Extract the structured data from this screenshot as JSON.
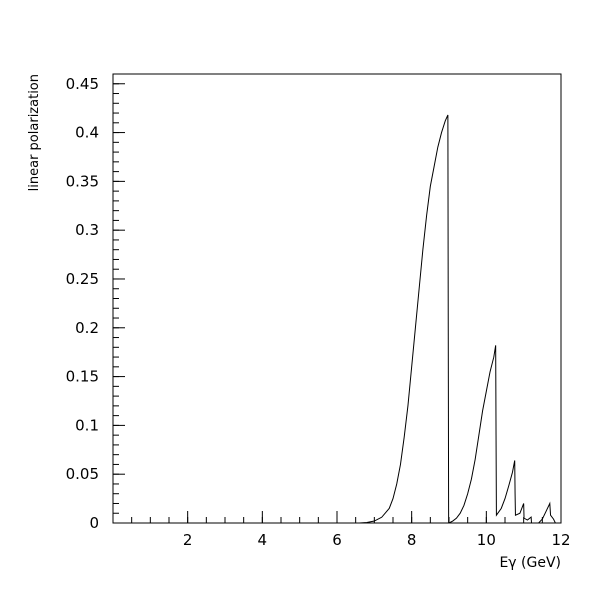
{
  "chart_data": {
    "type": "line",
    "title": "",
    "xlabel": "Eγ (GeV)",
    "ylabel": "linear polarization",
    "xlim": [
      0,
      12
    ],
    "ylim": [
      0,
      0.46
    ],
    "x_ticks_major": [
      2,
      4,
      6,
      8,
      10,
      12
    ],
    "x_ticks_minor_step": 0.5,
    "y_ticks_major": [
      0,
      0.05,
      0.1,
      0.15,
      0.2,
      0.25,
      0.3,
      0.35,
      0.4,
      0.45
    ],
    "y_tick_labels": [
      "0",
      "0.05",
      "0.1",
      "0.15",
      "0.2",
      "0.25",
      "0.3",
      "0.35",
      "0.4",
      "0.45"
    ],
    "y_ticks_minor_step": 0.01,
    "grid": false,
    "line_color": "#000000",
    "series": [
      {
        "values": [
          [
            6.4,
            0.0
          ],
          [
            6.6,
            0.0
          ],
          [
            6.8,
            0.0005
          ],
          [
            7.0,
            0.002
          ],
          [
            7.2,
            0.006
          ],
          [
            7.4,
            0.015
          ],
          [
            7.5,
            0.025
          ],
          [
            7.6,
            0.04
          ],
          [
            7.7,
            0.06
          ],
          [
            7.8,
            0.088
          ],
          [
            7.9,
            0.12
          ],
          [
            8.0,
            0.16
          ],
          [
            8.1,
            0.2
          ],
          [
            8.2,
            0.24
          ],
          [
            8.3,
            0.28
          ],
          [
            8.4,
            0.315
          ],
          [
            8.5,
            0.345
          ],
          [
            8.6,
            0.365
          ],
          [
            8.7,
            0.385
          ],
          [
            8.8,
            0.4
          ],
          [
            8.9,
            0.412
          ],
          [
            8.97,
            0.418
          ],
          [
            8.98,
            0.2
          ],
          [
            8.99,
            0.0
          ],
          [
            9.0,
            0.0
          ],
          [
            9.1,
            0.002
          ],
          [
            9.2,
            0.005
          ],
          [
            9.3,
            0.01
          ],
          [
            9.4,
            0.018
          ],
          [
            9.5,
            0.03
          ],
          [
            9.6,
            0.045
          ],
          [
            9.7,
            0.065
          ],
          [
            9.8,
            0.09
          ],
          [
            9.9,
            0.115
          ],
          [
            10.0,
            0.135
          ],
          [
            10.1,
            0.155
          ],
          [
            10.2,
            0.17
          ],
          [
            10.25,
            0.182
          ],
          [
            10.26,
            0.09
          ],
          [
            10.27,
            0.008
          ],
          [
            10.4,
            0.015
          ],
          [
            10.5,
            0.025
          ],
          [
            10.6,
            0.038
          ],
          [
            10.7,
            0.052
          ],
          [
            10.76,
            0.064
          ],
          [
            10.77,
            0.03
          ],
          [
            10.78,
            0.008
          ],
          [
            10.9,
            0.01
          ],
          [
            11.0,
            0.02
          ],
          [
            11.01,
            0.005
          ],
          [
            11.1,
            0.003
          ],
          [
            11.2,
            0.006
          ],
          [
            11.21,
            0.0
          ],
          [
            11.4,
            0.0
          ],
          [
            11.5,
            0.004
          ],
          [
            11.6,
            0.012
          ],
          [
            11.7,
            0.02
          ],
          [
            11.72,
            0.008
          ],
          [
            11.8,
            0.004
          ],
          [
            11.85,
            0.0
          ],
          [
            11.9,
            0.0
          ],
          [
            12.0,
            0.0
          ]
        ]
      }
    ]
  }
}
